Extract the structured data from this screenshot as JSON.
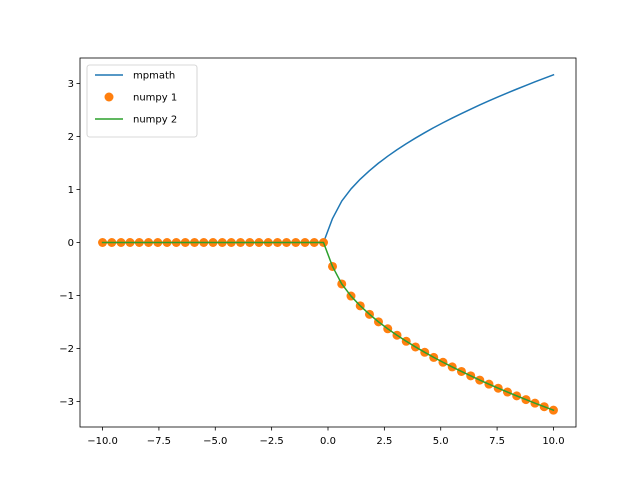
{
  "chart_data": {
    "type": "line",
    "title": "",
    "xlabel": "",
    "ylabel": "",
    "xlim": [
      -11.0,
      11.0
    ],
    "ylim": [
      -3.48,
      3.48
    ],
    "x_ticks": [
      -10.0,
      -7.5,
      -5.0,
      -2.5,
      0.0,
      2.5,
      5.0,
      7.5,
      10.0
    ],
    "x_tick_labels": [
      "−10.0",
      "−7.5",
      "−5.0",
      "−2.5",
      "0.0",
      "2.5",
      "5.0",
      "7.5",
      "10.0"
    ],
    "y_ticks": [
      -3,
      -2,
      -1,
      0,
      1,
      2,
      3
    ],
    "y_tick_labels": [
      "−3",
      "−2",
      "−1",
      "0",
      "1",
      "2",
      "3"
    ],
    "grid": false,
    "legend_position": "top-left",
    "series": [
      {
        "name": "mpmath",
        "style": "line",
        "color": "#1f77b4",
        "x": [
          -10.0,
          -9.59,
          -9.18,
          -8.78,
          -8.37,
          -7.96,
          -7.55,
          -7.14,
          -6.73,
          -6.33,
          -5.92,
          -5.51,
          -5.1,
          -4.69,
          -4.29,
          -3.88,
          -3.47,
          -3.06,
          -2.65,
          -2.24,
          -1.84,
          -1.43,
          -1.02,
          -0.61,
          -0.2,
          0.2,
          0.61,
          1.02,
          1.43,
          1.84,
          2.24,
          2.65,
          3.06,
          3.47,
          3.88,
          4.29,
          4.69,
          5.1,
          5.51,
          5.92,
          6.33,
          6.73,
          7.14,
          7.55,
          7.96,
          8.37,
          8.78,
          9.18,
          9.59,
          10.0
        ],
        "y": [
          0,
          0,
          0,
          0,
          0,
          0,
          0,
          0,
          0,
          0,
          0,
          0,
          0,
          0,
          0,
          0,
          0,
          0,
          0,
          0,
          0,
          0,
          0,
          0,
          0,
          0.452,
          0.782,
          1.01,
          1.195,
          1.355,
          1.497,
          1.628,
          1.749,
          1.863,
          1.97,
          2.071,
          2.167,
          2.259,
          2.347,
          2.432,
          2.515,
          2.595,
          2.672,
          2.748,
          2.821,
          2.893,
          2.963,
          3.03,
          3.097,
          3.162
        ]
      },
      {
        "name": "numpy 1",
        "style": "markers",
        "color": "#ff7f0e",
        "x": [
          -10.0,
          -9.59,
          -9.18,
          -8.78,
          -8.37,
          -7.96,
          -7.55,
          -7.14,
          -6.73,
          -6.33,
          -5.92,
          -5.51,
          -5.1,
          -4.69,
          -4.29,
          -3.88,
          -3.47,
          -3.06,
          -2.65,
          -2.24,
          -1.84,
          -1.43,
          -1.02,
          -0.61,
          -0.2,
          0.2,
          0.61,
          1.02,
          1.43,
          1.84,
          2.24,
          2.65,
          3.06,
          3.47,
          3.88,
          4.29,
          4.69,
          5.1,
          5.51,
          5.92,
          6.33,
          6.73,
          7.14,
          7.55,
          7.96,
          8.37,
          8.78,
          9.18,
          9.59,
          10.0
        ],
        "y": [
          0,
          0,
          0,
          0,
          0,
          0,
          0,
          0,
          0,
          0,
          0,
          0,
          0,
          0,
          0,
          0,
          0,
          0,
          0,
          0,
          0,
          0,
          0,
          0,
          0,
          -0.452,
          -0.782,
          -1.01,
          -1.195,
          -1.355,
          -1.497,
          -1.628,
          -1.749,
          -1.863,
          -1.97,
          -2.071,
          -2.167,
          -2.259,
          -2.347,
          -2.432,
          -2.515,
          -2.595,
          -2.672,
          -2.748,
          -2.821,
          -2.893,
          -2.963,
          -3.03,
          -3.097,
          -3.162
        ]
      },
      {
        "name": "numpy 2",
        "style": "line",
        "color": "#2ca02c",
        "x": [
          -10.0,
          -9.59,
          -9.18,
          -8.78,
          -8.37,
          -7.96,
          -7.55,
          -7.14,
          -6.73,
          -6.33,
          -5.92,
          -5.51,
          -5.1,
          -4.69,
          -4.29,
          -3.88,
          -3.47,
          -3.06,
          -2.65,
          -2.24,
          -1.84,
          -1.43,
          -1.02,
          -0.61,
          -0.2,
          0.2,
          0.61,
          1.02,
          1.43,
          1.84,
          2.24,
          2.65,
          3.06,
          3.47,
          3.88,
          4.29,
          4.69,
          5.1,
          5.51,
          5.92,
          6.33,
          6.73,
          7.14,
          7.55,
          7.96,
          8.37,
          8.78,
          9.18,
          9.59,
          10.0
        ],
        "y": [
          0,
          0,
          0,
          0,
          0,
          0,
          0,
          0,
          0,
          0,
          0,
          0,
          0,
          0,
          0,
          0,
          0,
          0,
          0,
          0,
          0,
          0,
          0,
          0,
          0,
          -0.452,
          -0.782,
          -1.01,
          -1.195,
          -1.355,
          -1.497,
          -1.628,
          -1.749,
          -1.863,
          -1.97,
          -2.071,
          -2.167,
          -2.259,
          -2.347,
          -2.432,
          -2.515,
          -2.595,
          -2.672,
          -2.748,
          -2.821,
          -2.893,
          -2.963,
          -3.03,
          -3.097,
          -3.162
        ]
      }
    ]
  }
}
